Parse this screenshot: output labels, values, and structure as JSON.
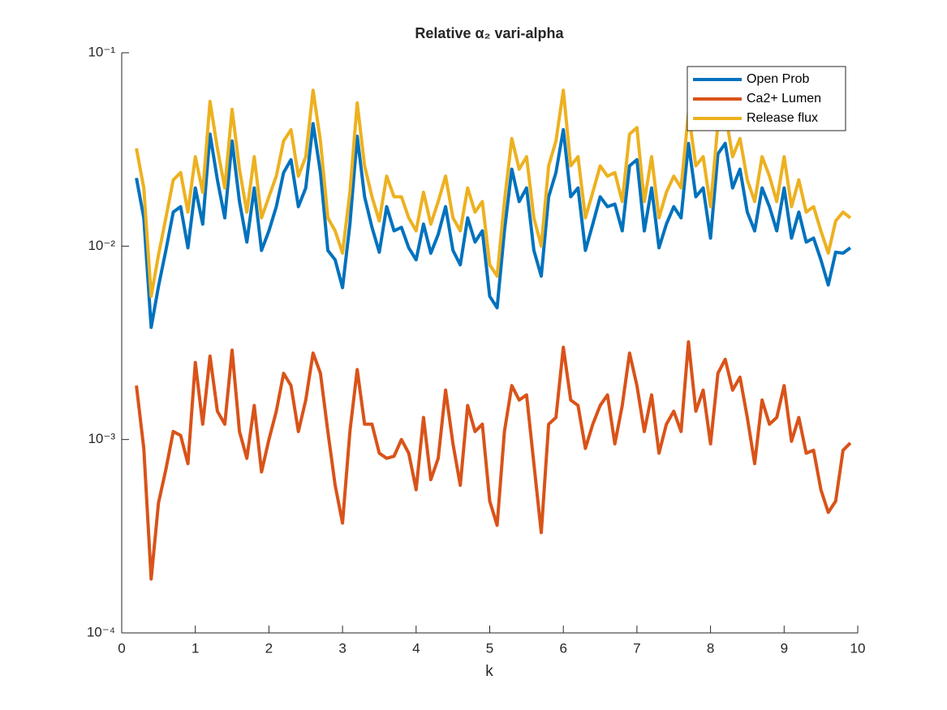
{
  "chart_data": {
    "type": "line",
    "title": "Relative α₂ vari-alpha",
    "xlabel": "k",
    "yscale": "log",
    "grid": false,
    "legend": "northeast",
    "xlim": [
      0,
      10
    ],
    "xticks": [
      0,
      1,
      2,
      3,
      4,
      5,
      6,
      7,
      8,
      9,
      10
    ],
    "ylim": [
      0.0001,
      0.1
    ],
    "yticks": [
      {
        "value": 0.0001,
        "label": "10⁻⁴"
      },
      {
        "value": 0.001,
        "label": "10⁻³"
      },
      {
        "value": 0.01,
        "label": "10⁻²"
      },
      {
        "value": 0.1,
        "label": "10⁻¹"
      }
    ],
    "x": [
      0.2,
      0.3,
      0.4,
      0.5,
      0.6,
      0.7,
      0.8,
      0.9,
      1.0,
      1.1,
      1.2,
      1.3,
      1.4,
      1.5,
      1.6,
      1.7,
      1.8,
      1.9,
      2.0,
      2.1,
      2.2,
      2.3,
      2.4,
      2.5,
      2.6,
      2.7,
      2.8,
      2.9,
      3.0,
      3.1,
      3.2,
      3.3,
      3.4,
      3.5,
      3.6,
      3.7,
      3.8,
      3.9,
      4.0,
      4.1,
      4.2,
      4.3,
      4.4,
      4.5,
      4.6,
      4.7,
      4.8,
      4.9,
      5.0,
      5.1,
      5.2,
      5.3,
      5.4,
      5.5,
      5.6,
      5.7,
      5.8,
      5.9,
      6.0,
      6.1,
      6.2,
      6.3,
      6.4,
      6.5,
      6.6,
      6.7,
      6.8,
      6.9,
      7.0,
      7.1,
      7.2,
      7.3,
      7.4,
      7.5,
      7.6,
      7.7,
      7.8,
      7.9,
      8.0,
      8.1,
      8.2,
      8.3,
      8.4,
      8.5,
      8.6,
      8.7,
      8.8,
      8.9,
      9.0,
      9.1,
      9.2,
      9.3,
      9.4,
      9.5,
      9.6,
      9.7,
      9.8,
      9.9
    ],
    "series": [
      {
        "name": "Open Prob",
        "color": "#0072BD",
        "values": [
          0.0225,
          0.014,
          0.0038,
          0.0062,
          0.0095,
          0.015,
          0.016,
          0.0098,
          0.02,
          0.013,
          0.038,
          0.022,
          0.014,
          0.035,
          0.017,
          0.0105,
          0.02,
          0.0095,
          0.012,
          0.016,
          0.024,
          0.028,
          0.016,
          0.02,
          0.043,
          0.024,
          0.0095,
          0.0085,
          0.0061,
          0.013,
          0.037,
          0.018,
          0.0125,
          0.0093,
          0.016,
          0.012,
          0.0125,
          0.0098,
          0.0085,
          0.013,
          0.0092,
          0.0115,
          0.016,
          0.0095,
          0.008,
          0.014,
          0.0105,
          0.012,
          0.0055,
          0.0048,
          0.012,
          0.025,
          0.017,
          0.02,
          0.0095,
          0.007,
          0.018,
          0.024,
          0.04,
          0.018,
          0.02,
          0.0095,
          0.013,
          0.018,
          0.016,
          0.0165,
          0.012,
          0.026,
          0.028,
          0.012,
          0.02,
          0.0098,
          0.013,
          0.016,
          0.014,
          0.034,
          0.018,
          0.02,
          0.011,
          0.03,
          0.034,
          0.02,
          0.025,
          0.015,
          0.012,
          0.02,
          0.016,
          0.012,
          0.02,
          0.011,
          0.015,
          0.0105,
          0.011,
          0.0085,
          0.0063,
          0.0093,
          0.0092,
          0.0098
        ]
      },
      {
        "name": "Ca2+ Lumen",
        "color": "#D95319",
        "values": [
          0.0019,
          0.0009,
          0.00019,
          0.00047,
          0.0007,
          0.0011,
          0.00105,
          0.00075,
          0.0025,
          0.0012,
          0.0027,
          0.0014,
          0.0012,
          0.0029,
          0.0011,
          0.0008,
          0.0015,
          0.00068,
          0.001,
          0.0014,
          0.0022,
          0.0019,
          0.0011,
          0.0016,
          0.0028,
          0.0022,
          0.0011,
          0.00058,
          0.00037,
          0.0011,
          0.0023,
          0.0012,
          0.0012,
          0.00085,
          0.0008,
          0.00082,
          0.001,
          0.00085,
          0.00055,
          0.0013,
          0.00062,
          0.0008,
          0.0018,
          0.00095,
          0.00058,
          0.0015,
          0.0011,
          0.0012,
          0.00048,
          0.00036,
          0.0011,
          0.0019,
          0.0016,
          0.0017,
          0.00075,
          0.00033,
          0.0012,
          0.0013,
          0.003,
          0.0016,
          0.0015,
          0.0009,
          0.0012,
          0.0015,
          0.0017,
          0.00095,
          0.0015,
          0.0028,
          0.0019,
          0.0011,
          0.0017,
          0.00085,
          0.0012,
          0.0014,
          0.0011,
          0.0032,
          0.0014,
          0.0018,
          0.00095,
          0.0022,
          0.0026,
          0.0018,
          0.0021,
          0.0013,
          0.00075,
          0.0016,
          0.0012,
          0.0013,
          0.0019,
          0.00098,
          0.0013,
          0.00085,
          0.00088,
          0.00055,
          0.00042,
          0.00048,
          0.00088,
          0.00096
        ]
      },
      {
        "name": "Release flux",
        "color": "#EDB120",
        "values": [
          0.032,
          0.02,
          0.0055,
          0.009,
          0.014,
          0.022,
          0.024,
          0.015,
          0.029,
          0.019,
          0.056,
          0.032,
          0.02,
          0.051,
          0.025,
          0.015,
          0.029,
          0.014,
          0.018,
          0.023,
          0.035,
          0.04,
          0.023,
          0.029,
          0.064,
          0.035,
          0.014,
          0.012,
          0.0092,
          0.019,
          0.055,
          0.026,
          0.018,
          0.0135,
          0.023,
          0.018,
          0.018,
          0.014,
          0.012,
          0.019,
          0.013,
          0.017,
          0.023,
          0.014,
          0.012,
          0.02,
          0.015,
          0.017,
          0.008,
          0.007,
          0.017,
          0.036,
          0.025,
          0.029,
          0.014,
          0.01,
          0.026,
          0.035,
          0.064,
          0.026,
          0.029,
          0.014,
          0.019,
          0.026,
          0.023,
          0.024,
          0.017,
          0.038,
          0.041,
          0.017,
          0.029,
          0.014,
          0.019,
          0.023,
          0.02,
          0.049,
          0.026,
          0.029,
          0.016,
          0.043,
          0.049,
          0.029,
          0.036,
          0.022,
          0.017,
          0.029,
          0.023,
          0.017,
          0.029,
          0.016,
          0.022,
          0.015,
          0.016,
          0.012,
          0.0092,
          0.0135,
          0.015,
          0.014
        ]
      }
    ]
  }
}
